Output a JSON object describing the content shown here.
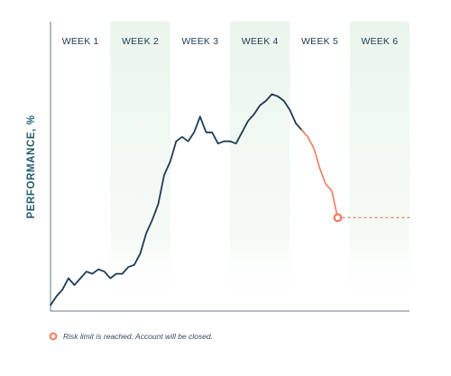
{
  "chart_data": {
    "type": "line",
    "title": "",
    "xlabel": "",
    "ylabel": "PERFORMANCE, %",
    "weeks": [
      "WEEK 1",
      "WEEK 2",
      "WEEK 3",
      "WEEK 4",
      "WEEK 5",
      "WEEK 6"
    ],
    "x_range": [
      0,
      6
    ],
    "ylim": [
      0,
      100
    ],
    "grid": false,
    "colors": {
      "main": "#1f3b52",
      "risk": "#f07a5c",
      "band": "#f1f8f2",
      "axis": "#6a7a86"
    },
    "series": [
      {
        "role": "main",
        "x": [
          0,
          0.1,
          0.2,
          0.3,
          0.4,
          0.5,
          0.6,
          0.7,
          0.8,
          0.9,
          1.0,
          1.1,
          1.2,
          1.3,
          1.4,
          1.5,
          1.6,
          1.7,
          1.8,
          1.9,
          2.0,
          2.1,
          2.2,
          2.3,
          2.4,
          2.5,
          2.6,
          2.7,
          2.8,
          2.9,
          3.0,
          3.1,
          3.2,
          3.3,
          3.4,
          3.5,
          3.6,
          3.7,
          3.8,
          3.9,
          4.0,
          4.1,
          4.2
        ],
        "y": [
          1,
          5,
          8,
          13,
          10,
          13,
          16,
          15,
          17,
          16,
          13,
          15,
          15,
          18,
          19,
          24,
          33,
          39,
          46,
          59,
          65,
          74,
          76,
          74,
          78,
          85,
          78,
          78,
          73,
          74,
          74,
          73,
          78,
          83,
          86,
          90,
          92,
          95,
          94,
          92,
          88,
          82,
          79
        ]
      },
      {
        "role": "risk",
        "x": [
          4.2,
          4.3,
          4.4,
          4.5,
          4.6,
          4.7,
          4.8
        ],
        "y": [
          79,
          76,
          71,
          62,
          55,
          52,
          40
        ]
      }
    ],
    "risk_point": {
      "x": 4.8,
      "y": 40
    },
    "risk_projection": {
      "x_end": 6,
      "y": 40
    }
  },
  "legend": {
    "text": "Risk limit is reached. Account will be closed."
  }
}
